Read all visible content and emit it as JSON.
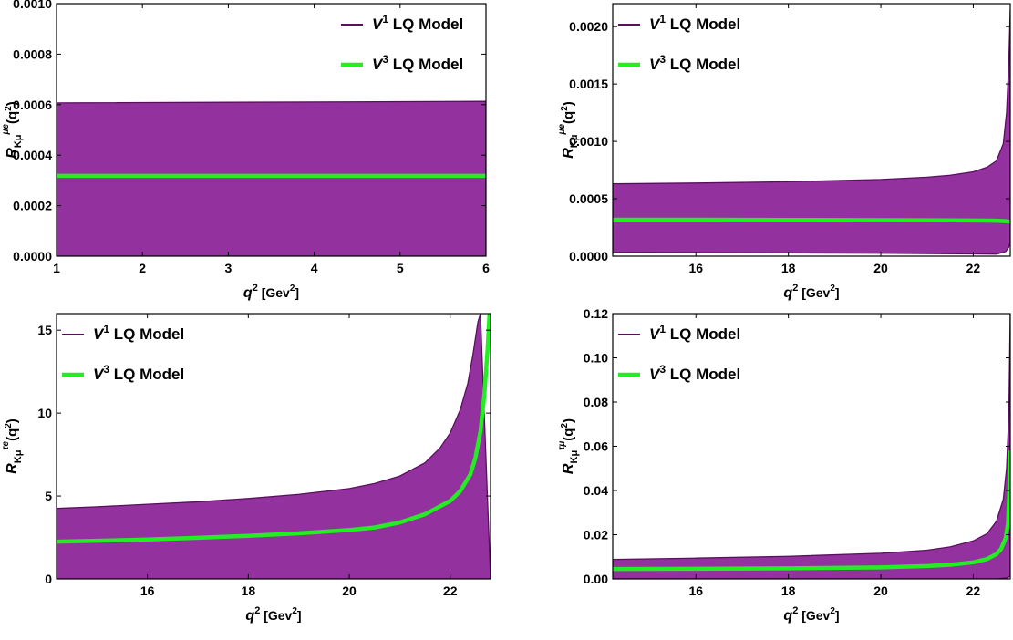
{
  "colors": {
    "band_fill": "#93329e",
    "band_edge": "#5a0f5e",
    "central_line": "#22ee22",
    "axis": "#000000"
  },
  "xlabel_parts": [
    "q",
    "2",
    " [Gev",
    "2",
    "]"
  ],
  "legend": [
    {
      "pre": "V",
      "sup": "1",
      "post": " LQ Model"
    },
    {
      "pre": "V",
      "sup": "3",
      "post": " LQ Model"
    }
  ],
  "chart_data": [
    {
      "type": "area",
      "ylabel": {
        "main": "R",
        "sub": "Kμ",
        "sup": "μe",
        "tail": "(q",
        "tail_sup": "2",
        "end": ")"
      },
      "xlim": [
        1,
        6
      ],
      "ylim": [
        0,
        0.001
      ],
      "xticks": [
        1,
        2,
        3,
        4,
        5,
        6
      ],
      "xtick_labels": [
        "1",
        "2",
        "3",
        "4",
        "5",
        "6"
      ],
      "yticks": [
        0,
        0.0002,
        0.0004,
        0.0006,
        0.0008,
        0.001
      ],
      "ytick_labels": [
        "0.0000",
        "0.0002",
        "0.0004",
        "0.0006",
        "0.0008",
        "0.0010"
      ],
      "series": [
        {
          "legend_index": 0,
          "kind": "band",
          "upper": [
            [
              1,
              0.000607
            ],
            [
              6,
              0.000613
            ]
          ],
          "lower": [
            [
              1,
              0.0
            ],
            [
              6,
              0.0
            ]
          ]
        },
        {
          "legend_index": 1,
          "kind": "line",
          "points": [
            [
              1,
              0.000318
            ],
            [
              6,
              0.000318
            ]
          ]
        }
      ]
    },
    {
      "type": "area",
      "ylabel": {
        "main": "R",
        "sub": "Kμ",
        "sup": "μe",
        "tail": "(q",
        "tail_sup": "2",
        "end": ")"
      },
      "xlim": [
        14.2,
        22.8
      ],
      "ylim": [
        0,
        0.0022
      ],
      "xticks": [
        16,
        18,
        20,
        22
      ],
      "xtick_labels": [
        "16",
        "18",
        "20",
        "22"
      ],
      "yticks": [
        0,
        0.0005,
        0.001,
        0.0015,
        0.002
      ],
      "ytick_labels": [
        "0.0000",
        "0.0005",
        "0.0010",
        "0.0015",
        "0.0020"
      ],
      "series": [
        {
          "legend_index": 0,
          "kind": "band",
          "upper": [
            [
              14.2,
              0.00063
            ],
            [
              16,
              0.000637
            ],
            [
              18,
              0.000648
            ],
            [
              20,
              0.000668
            ],
            [
              21,
              0.000688
            ],
            [
              21.5,
              0.000705
            ],
            [
              22,
              0.000735
            ],
            [
              22.3,
              0.000775
            ],
            [
              22.5,
              0.00083
            ],
            [
              22.65,
              0.00098
            ],
            [
              22.72,
              0.00125
            ],
            [
              22.77,
              0.0017
            ],
            [
              22.8,
              0.00215
            ]
          ],
          "lower": [
            [
              14.2,
              3.5e-05
            ],
            [
              16,
              3.2e-05
            ],
            [
              18,
              2.9e-05
            ],
            [
              20,
              2.6e-05
            ],
            [
              22,
              2e-05
            ],
            [
              22.5,
              1.8e-05
            ],
            [
              22.7,
              4e-05
            ],
            [
              22.77,
              8e-05
            ],
            [
              22.8,
              0.00013
            ]
          ]
        },
        {
          "legend_index": 1,
          "kind": "line",
          "points": [
            [
              14.2,
              0.000318
            ],
            [
              16,
              0.000318
            ],
            [
              18,
              0.000316
            ],
            [
              20,
              0.000314
            ],
            [
              22,
              0.000311
            ],
            [
              22.5,
              0.000309
            ],
            [
              22.7,
              0.000305
            ],
            [
              22.8,
              0.0003
            ]
          ]
        }
      ]
    },
    {
      "type": "area",
      "ylabel": {
        "main": "R",
        "sub": "Kμ",
        "sup": "τe",
        "tail": "(q",
        "tail_sup": "2",
        "end": ")"
      },
      "xlim": [
        14.2,
        22.8
      ],
      "ylim": [
        0,
        16
      ],
      "xticks": [
        16,
        18,
        20,
        22
      ],
      "xtick_labels": [
        "16",
        "18",
        "20",
        "22"
      ],
      "yticks": [
        0,
        5,
        10,
        15
      ],
      "ytick_labels": [
        "0",
        "5",
        "10",
        "15"
      ],
      "series": [
        {
          "legend_index": 0,
          "kind": "band",
          "upper": [
            [
              14.2,
              4.25
            ],
            [
              15,
              4.35
            ],
            [
              16,
              4.5
            ],
            [
              17,
              4.65
            ],
            [
              18,
              4.85
            ],
            [
              19,
              5.1
            ],
            [
              20,
              5.45
            ],
            [
              20.5,
              5.75
            ],
            [
              21,
              6.2
            ],
            [
              21.5,
              7.0
            ],
            [
              21.8,
              7.9
            ],
            [
              22,
              8.8
            ],
            [
              22.2,
              10.2
            ],
            [
              22.35,
              11.8
            ],
            [
              22.45,
              13.5
            ],
            [
              22.55,
              15.5
            ],
            [
              22.6,
              16.5
            ]
          ],
          "lower": [
            [
              14.2,
              0
            ],
            [
              22.8,
              0
            ]
          ]
        },
        {
          "legend_index": 1,
          "kind": "line",
          "points": [
            [
              14.2,
              2.25
            ],
            [
              15,
              2.3
            ],
            [
              16,
              2.38
            ],
            [
              17,
              2.48
            ],
            [
              18,
              2.6
            ],
            [
              19,
              2.75
            ],
            [
              20,
              2.95
            ],
            [
              20.5,
              3.1
            ],
            [
              21,
              3.4
            ],
            [
              21.5,
              3.9
            ],
            [
              22,
              4.7
            ],
            [
              22.2,
              5.3
            ],
            [
              22.4,
              6.3
            ],
            [
              22.5,
              7.3
            ],
            [
              22.6,
              8.9
            ],
            [
              22.68,
              11.2
            ],
            [
              22.74,
              13.8
            ],
            [
              22.78,
              16.0
            ]
          ]
        }
      ]
    },
    {
      "type": "area",
      "ylabel": {
        "main": "R",
        "sub": "Kμ",
        "sup": "τμ",
        "tail": "(q",
        "tail_sup": "2",
        "end": ")"
      },
      "xlim": [
        14.2,
        22.8
      ],
      "ylim": [
        0,
        0.12
      ],
      "xticks": [
        16,
        18,
        20,
        22
      ],
      "xtick_labels": [
        "16",
        "18",
        "20",
        "22"
      ],
      "yticks": [
        0,
        0.02,
        0.04,
        0.06,
        0.08,
        0.1,
        0.12
      ],
      "ytick_labels": [
        "0.00",
        "0.02",
        "0.04",
        "0.06",
        "0.08",
        "0.10",
        "0.12"
      ],
      "series": [
        {
          "legend_index": 0,
          "kind": "band",
          "upper": [
            [
              14.2,
              0.0088
            ],
            [
              16,
              0.0094
            ],
            [
              18,
              0.0102
            ],
            [
              20,
              0.0116
            ],
            [
              21,
              0.013
            ],
            [
              21.5,
              0.0145
            ],
            [
              22,
              0.0172
            ],
            [
              22.3,
              0.0205
            ],
            [
              22.5,
              0.026
            ],
            [
              22.65,
              0.036
            ],
            [
              22.72,
              0.05
            ],
            [
              22.77,
              0.075
            ],
            [
              22.8,
              0.12
            ]
          ],
          "lower": [
            [
              14.2,
              0
            ],
            [
              22.5,
              0
            ],
            [
              22.75,
              0.0005
            ],
            [
              22.8,
              0.0015
            ]
          ]
        },
        {
          "legend_index": 1,
          "kind": "line",
          "points": [
            [
              14.2,
              0.0045
            ],
            [
              16,
              0.0046
            ],
            [
              18,
              0.0048
            ],
            [
              20,
              0.0052
            ],
            [
              21,
              0.0058
            ],
            [
              21.5,
              0.0064
            ],
            [
              22,
              0.0075
            ],
            [
              22.3,
              0.009
            ],
            [
              22.5,
              0.0112
            ],
            [
              22.6,
              0.0135
            ],
            [
              22.7,
              0.0185
            ],
            [
              22.75,
              0.025
            ],
            [
              22.78,
              0.04
            ],
            [
              22.8,
              0.058
            ]
          ]
        }
      ]
    }
  ]
}
